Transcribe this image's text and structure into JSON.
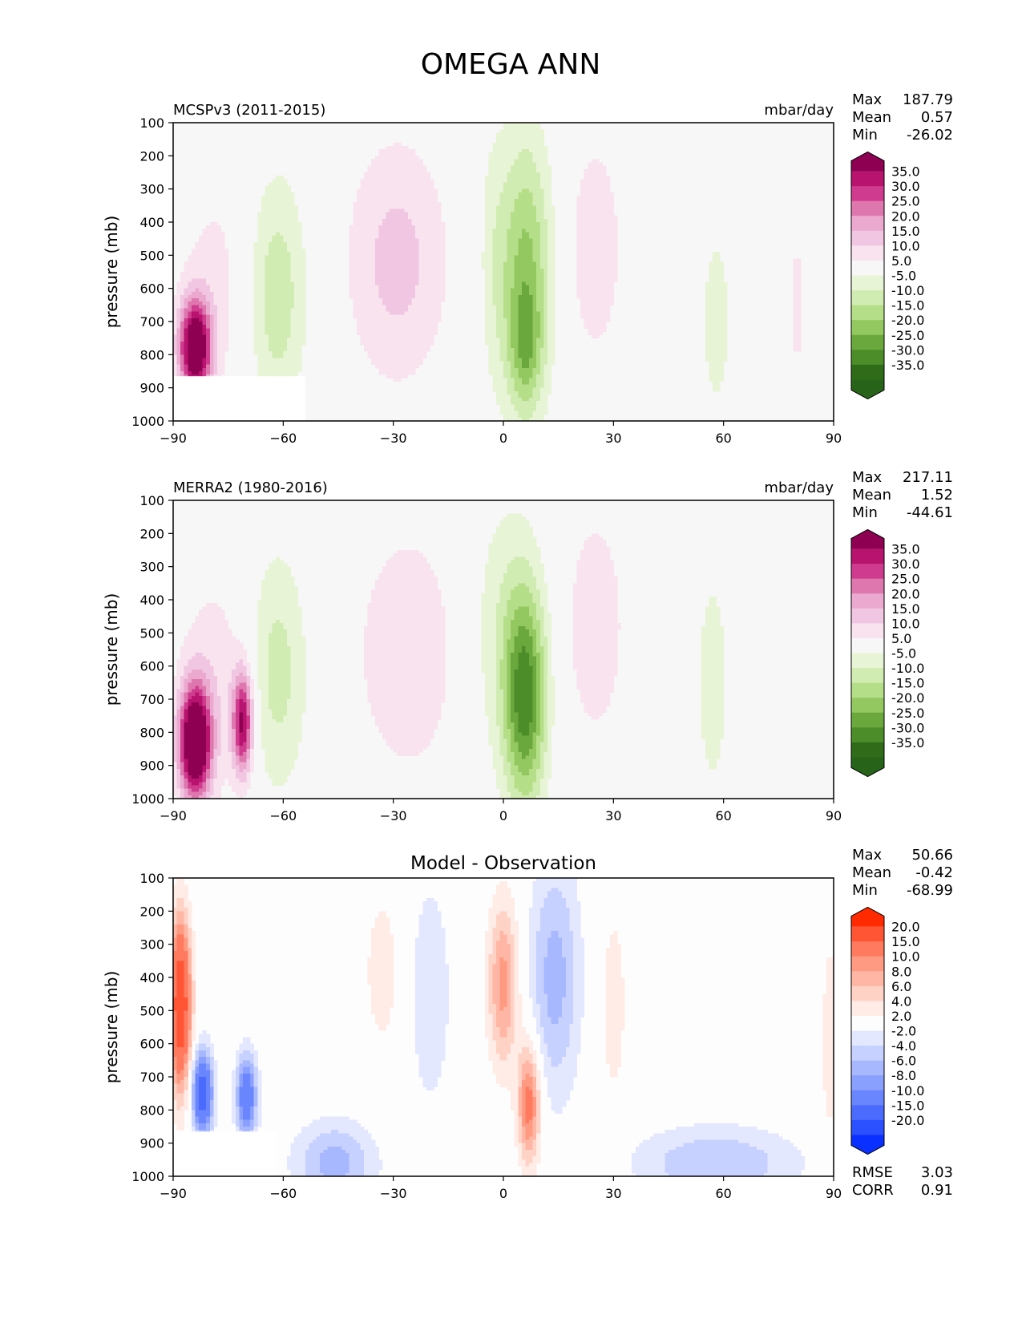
{
  "figure": {
    "title": "OMEGA ANN"
  },
  "panels": [
    {
      "left_title": "MCSPv3 (2011-2015)",
      "center_title": "",
      "units": "mbar/day",
      "ylabel": "pressure (mb)",
      "stats": [
        [
          "Max",
          "187.79"
        ],
        [
          "Mean",
          "0.57"
        ],
        [
          "Min",
          "-26.02"
        ]
      ],
      "colorbar": {
        "labels": [
          "35.0",
          "30.0",
          "25.0",
          "20.0",
          "15.0",
          "10.0",
          "5.0",
          "-5.0",
          "-10.0",
          "-15.0",
          "-20.0",
          "-25.0",
          "-30.0",
          "-35.0"
        ],
        "colors": [
          "#8e0152",
          "#b8136f",
          "#cf3c8f",
          "#de77ae",
          "#eba9d0",
          "#f1c6e2",
          "#f8e3ef",
          "#f7f7f7",
          "#e8f4d6",
          "#d1ecb2",
          "#b5de89",
          "#92c85f",
          "#6aa83e",
          "#4c8c29",
          "#2f6b18",
          "#276419"
        ]
      }
    },
    {
      "left_title": "MERRA2 (1980-2016)",
      "center_title": "",
      "units": "mbar/day",
      "ylabel": "pressure (mb)",
      "stats": [
        [
          "Max",
          "217.11"
        ],
        [
          "Mean",
          "1.52"
        ],
        [
          "Min",
          "-44.61"
        ]
      ],
      "colorbar": {
        "labels": [
          "35.0",
          "30.0",
          "25.0",
          "20.0",
          "15.0",
          "10.0",
          "5.0",
          "-5.0",
          "-10.0",
          "-15.0",
          "-20.0",
          "-25.0",
          "-30.0",
          "-35.0"
        ],
        "colors": [
          "#8e0152",
          "#b8136f",
          "#cf3c8f",
          "#de77ae",
          "#eba9d0",
          "#f1c6e2",
          "#f8e3ef",
          "#f7f7f7",
          "#e8f4d6",
          "#d1ecb2",
          "#b5de89",
          "#92c85f",
          "#6aa83e",
          "#4c8c29",
          "#2f6b18",
          "#276419"
        ]
      }
    },
    {
      "left_title": "",
      "center_title": "Model - Observation",
      "units": "",
      "ylabel": "pressure (mb)",
      "stats": [
        [
          "Max",
          "50.66"
        ],
        [
          "Mean",
          "-0.42"
        ],
        [
          "Min",
          "-68.99"
        ]
      ],
      "extra_stats": [
        [
          "RMSE",
          "3.03"
        ],
        [
          "CORR",
          "0.91"
        ]
      ],
      "colorbar": {
        "labels": [
          "20.0",
          "15.0",
          "10.0",
          "8.0",
          "6.0",
          "4.0",
          "2.0",
          "-2.0",
          "-4.0",
          "-6.0",
          "-8.0",
          "-10.0",
          "-15.0",
          "-20.0"
        ],
        "colors": [
          "#ff2a00",
          "#ff5535",
          "#ff7a5e",
          "#ff9a82",
          "#ffb6a4",
          "#ffd2c6",
          "#ffecE6",
          "#fdfdfd",
          "#e3e8ff",
          "#c7d1ff",
          "#a8b8ff",
          "#8aa0ff",
          "#6a86ff",
          "#4b6bff",
          "#2b50ff",
          "#0a30ff"
        ]
      }
    }
  ],
  "chart_data": [
    {
      "type": "heatmap",
      "title": "MCSPv3 (2011-2015)",
      "xlabel": "",
      "ylabel": "pressure (mb)",
      "units": "mbar/day",
      "x_ticks": [
        "−90",
        "−60",
        "−30",
        "0",
        "30",
        "60",
        "90"
      ],
      "y_ticks": [
        "100",
        "200",
        "300",
        "400",
        "500",
        "600",
        "700",
        "800",
        "900",
        "1000"
      ],
      "xlim": [
        -90,
        90
      ],
      "ylim": [
        1000,
        100
      ],
      "blobs": [
        {
          "lat": -62,
          "p": 620,
          "wlat": 6,
          "wp": 260,
          "value": -14
        },
        {
          "lat": -29,
          "p": 520,
          "wlat": 10,
          "wp": 270,
          "value": 12
        },
        {
          "lat": 6,
          "p": 560,
          "wlat": 5,
          "wp": 300,
          "value": -22
        },
        {
          "lat": 6,
          "p": 780,
          "wlat": 3,
          "wp": 120,
          "value": -12
        },
        {
          "lat": 25,
          "p": 480,
          "wlat": 5,
          "wp": 230,
          "value": 10
        },
        {
          "lat": -84,
          "p": 780,
          "wlat": 3,
          "wp": 100,
          "value": 45
        },
        {
          "lat": -78,
          "p": 600,
          "wlat": 8,
          "wp": 260,
          "value": 7
        },
        {
          "lat": 58,
          "p": 700,
          "wlat": 5,
          "wp": 350,
          "value": -6
        },
        {
          "lat": 80,
          "p": 650,
          "wlat": 2,
          "wp": 250,
          "value": 6
        },
        {
          "lat": -3,
          "p": 500,
          "wlat": 3,
          "wp": 300,
          "value": -6
        }
      ]
    },
    {
      "type": "heatmap",
      "title": "MERRA2 (1980-2016)",
      "xlabel": "",
      "ylabel": "pressure (mb)",
      "units": "mbar/day",
      "x_ticks": [
        "−90",
        "−60",
        "−30",
        "0",
        "30",
        "60",
        "90"
      ],
      "y_ticks": [
        "100",
        "200",
        "300",
        "400",
        "500",
        "600",
        "700",
        "800",
        "900",
        "1000"
      ],
      "xlim": [
        -90,
        90
      ],
      "ylim": [
        1000,
        100
      ],
      "blobs": [
        {
          "lat": -62,
          "p": 620,
          "wlat": 6,
          "wp": 260,
          "value": -13
        },
        {
          "lat": -26,
          "p": 560,
          "wlat": 11,
          "wp": 290,
          "value": 9
        },
        {
          "lat": 6,
          "p": 700,
          "wlat": 4,
          "wp": 230,
          "value": -30
        },
        {
          "lat": 0,
          "p": 500,
          "wlat": 7,
          "wp": 300,
          "value": -9
        },
        {
          "lat": 25,
          "p": 480,
          "wlat": 6,
          "wp": 260,
          "value": 9
        },
        {
          "lat": -84,
          "p": 830,
          "wlat": 3,
          "wp": 120,
          "value": 50
        },
        {
          "lat": -78,
          "p": 650,
          "wlat": 8,
          "wp": 260,
          "value": 8
        },
        {
          "lat": -71,
          "p": 770,
          "wlat": 2,
          "wp": 110,
          "value": 35
        },
        {
          "lat": 57,
          "p": 650,
          "wlat": 4,
          "wp": 320,
          "value": -7
        },
        {
          "lat": 80,
          "p": 720,
          "wlat": 3,
          "wp": 240,
          "value": 5
        }
      ]
    },
    {
      "type": "heatmap",
      "title": "Model - Observation",
      "xlabel": "",
      "ylabel": "pressure (mb)",
      "units": "",
      "x_ticks": [
        "−90",
        "−60",
        "−30",
        "0",
        "30",
        "60",
        "90"
      ],
      "y_ticks": [
        "100",
        "200",
        "300",
        "400",
        "500",
        "600",
        "700",
        "800",
        "900",
        "1000"
      ],
      "xlim": [
        -90,
        90
      ],
      "ylim": [
        1000,
        100
      ],
      "blobs": [
        {
          "lat": 0,
          "p": 420,
          "wlat": 3,
          "wp": 180,
          "value": 9
        },
        {
          "lat": 7,
          "p": 780,
          "wlat": 2.2,
          "wp": 130,
          "value": 12
        },
        {
          "lat": 14,
          "p": 400,
          "wlat": 5,
          "wp": 260,
          "value": -7
        },
        {
          "lat": -20,
          "p": 450,
          "wlat": 4,
          "wp": 250,
          "value": -4
        },
        {
          "lat": -33,
          "p": 380,
          "wlat": 4,
          "wp": 200,
          "value": 3
        },
        {
          "lat": 30,
          "p": 480,
          "wlat": 3,
          "wp": 250,
          "value": 3
        },
        {
          "lat": -88,
          "p": 480,
          "wlat": 2,
          "wp": 180,
          "value": 20
        },
        {
          "lat": -82,
          "p": 750,
          "wlat": 2,
          "wp": 90,
          "value": -18
        },
        {
          "lat": -70,
          "p": 760,
          "wlat": 2,
          "wp": 90,
          "value": -14
        },
        {
          "lat": -46,
          "p": 960,
          "wlat": 8,
          "wp": 90,
          "value": -7
        },
        {
          "lat": 58,
          "p": 960,
          "wlat": 16,
          "wp": 80,
          "value": -6
        },
        {
          "lat": 89,
          "p": 600,
          "wlat": 2,
          "wp": 300,
          "value": 3
        }
      ]
    }
  ]
}
